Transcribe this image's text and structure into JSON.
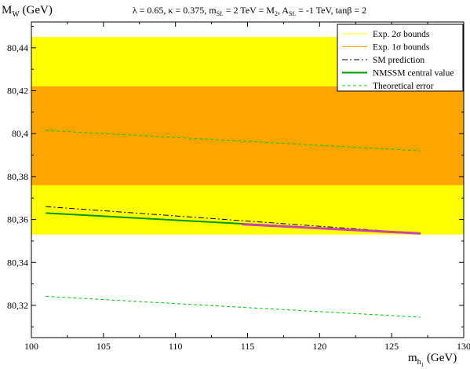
{
  "chart_data": {
    "type": "line",
    "title": "λ = 0.65, κ = 0.375, m_Sf. = 2 TeV = M_2, A_Sf. = -1 TeV, tanβ = 2",
    "title_parts": {
      "a": "λ = 0.65, κ = 0.375, m",
      "a_sub": "Sf.",
      "b": " = 2 TeV = M",
      "b_sub": "2",
      "c": ", A",
      "c_sub": "Sf.",
      "d": " = -1 TeV, tanβ = 2"
    },
    "ylabel": {
      "main": "M",
      "sub": "W",
      "rest": " (GeV)"
    },
    "xlabel": {
      "main": "m",
      "sub": "h",
      "subsub": "1",
      "rest": " (GeV)"
    },
    "xlim": [
      100,
      130
    ],
    "ylim": [
      80.305,
      80.452
    ],
    "grid": false,
    "legend_position": "top-right",
    "x_ticks": [
      "100",
      "105",
      "110",
      "115",
      "120",
      "125",
      "130"
    ],
    "x_tick_values": [
      100,
      105,
      110,
      115,
      120,
      125,
      130
    ],
    "y_ticks": [
      "80,32",
      "80,34",
      "80,36",
      "80,38",
      "80,4",
      "80,42",
      "80,44"
    ],
    "y_tick_values": [
      80.32,
      80.34,
      80.36,
      80.38,
      80.4,
      80.42,
      80.44
    ],
    "bands": [
      {
        "name": "Exp. 2σ bounds",
        "y": [
          80.353,
          80.445
        ],
        "color": "#ffff00"
      },
      {
        "name": "Exp. 1σ bounds",
        "y": [
          80.376,
          80.422
        ],
        "color": "#ffa500"
      }
    ],
    "series": [
      {
        "name": "SM prediction",
        "style": "dashdot",
        "color": "#000000",
        "x": [
          101,
          127
        ],
        "values": [
          80.366,
          80.3535
        ]
      },
      {
        "name": "NMSSM central value",
        "style": "solid",
        "color": "#009900",
        "x": [
          101,
          127
        ],
        "values": [
          80.363,
          80.3535
        ]
      },
      {
        "name": "Theoretical error",
        "style": "dashed",
        "color": "#00cc00",
        "x": [
          101,
          127
        ],
        "values": [
          80.4015,
          80.392
        ]
      },
      {
        "name": "Theoretical error",
        "style": "dashed",
        "color": "#00cc00",
        "x": [
          101,
          127
        ],
        "values": [
          80.3242,
          80.3145
        ]
      },
      {
        "name": "",
        "style": "solid",
        "color": "#cc44aa",
        "x": [
          114.6,
          127
        ],
        "values": [
          80.3578,
          80.3535
        ]
      }
    ],
    "legend": [
      {
        "label": "Exp. 2σ bounds",
        "color": "#ffff00",
        "style": "solid"
      },
      {
        "label": "Exp. 1σ bounds",
        "color": "#ffa500",
        "style": "solid"
      },
      {
        "label": "SM prediction",
        "color": "#000000",
        "style": "dashdot"
      },
      {
        "label": "NMSSM central value",
        "color": "#009900",
        "style": "solid"
      },
      {
        "label": "Theoretical error",
        "color": "#00cc00",
        "style": "dashed"
      }
    ]
  }
}
